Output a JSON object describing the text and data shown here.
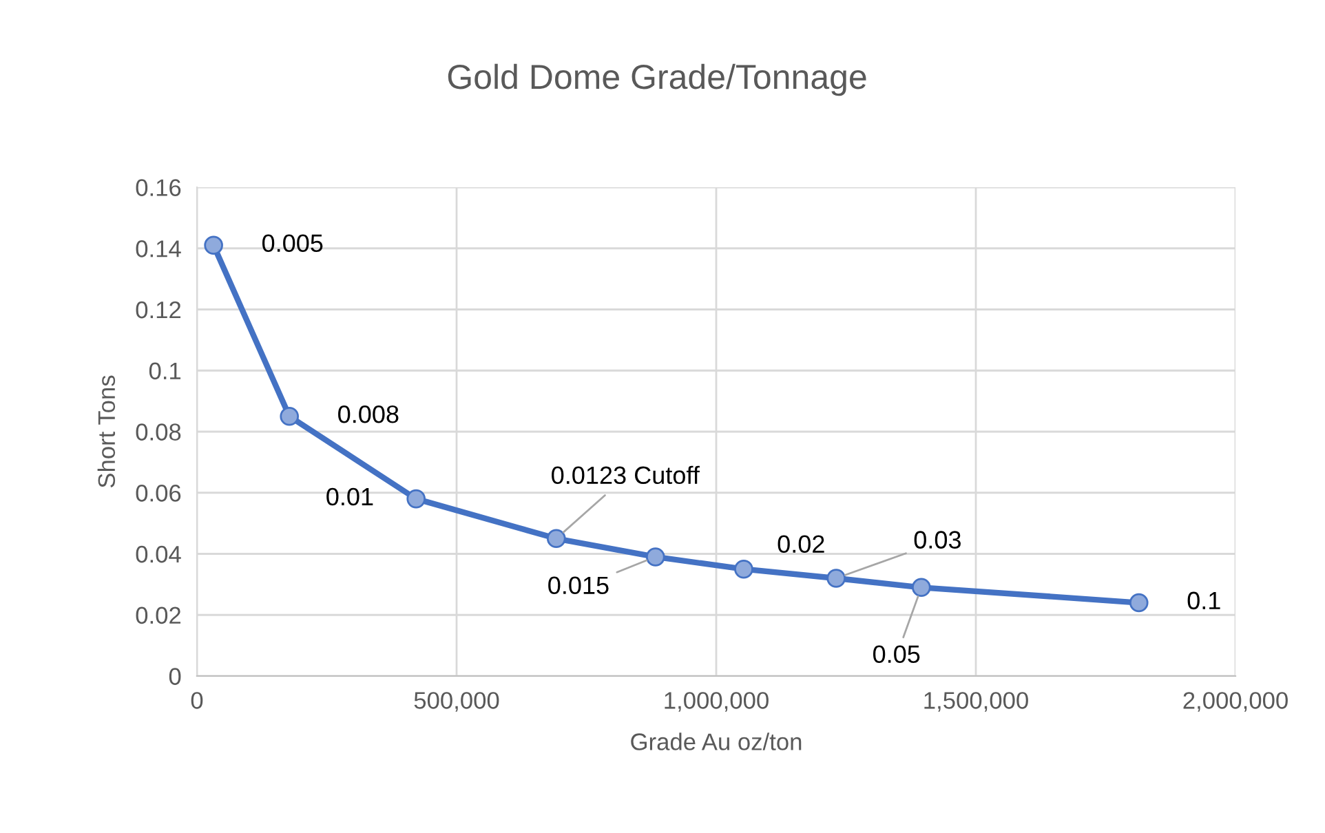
{
  "chart_data": {
    "type": "line",
    "title": "Gold Dome Grade/Tonnage",
    "xlabel": "Grade Au oz/ton",
    "ylabel": "Short Tons",
    "x": [
      32000,
      178000,
      422000,
      692000,
      883000,
      1053000,
      1231000,
      1395000,
      1814000
    ],
    "series": [
      {
        "color": "#4472c4",
        "values": [
          0.141,
          0.085,
          0.058,
          0.045,
          0.039,
          0.035,
          0.032,
          0.029,
          0.024
        ]
      }
    ],
    "annotations": [
      {
        "text": "0.005",
        "x": 32000,
        "y": 0.141
      },
      {
        "text": "0.008",
        "x": 178000,
        "y": 0.085
      },
      {
        "text": "0.01",
        "x": 422000,
        "y": 0.058
      },
      {
        "text": "0.0123 Cutoff",
        "x": 692000,
        "y": 0.045
      },
      {
        "text": "0.015",
        "x": 883000,
        "y": 0.039
      },
      {
        "text": "0.02",
        "x": 1053000,
        "y": 0.035
      },
      {
        "text": "0.03",
        "x": 1231000,
        "y": 0.032
      },
      {
        "text": "0.05",
        "x": 1395000,
        "y": 0.029
      },
      {
        "text": "0.1",
        "x": 1814000,
        "y": 0.024
      }
    ],
    "xlim": [
      0,
      2000000
    ],
    "xticks": [
      0,
      {
        "value": 500000,
        "label": "500,000"
      },
      {
        "value": 1000000,
        "label": "1,000,000"
      },
      {
        "value": 1500000,
        "label": "1,500,000"
      },
      {
        "value": 2000000,
        "label": "2,000,000"
      }
    ],
    "ylim": [
      0,
      0.16
    ],
    "yticks": [
      0,
      0.02,
      0.04,
      0.06,
      0.08,
      0.1,
      0.12,
      0.14,
      0.16
    ],
    "grid": true,
    "marker": "circle",
    "line_style": "solid"
  }
}
